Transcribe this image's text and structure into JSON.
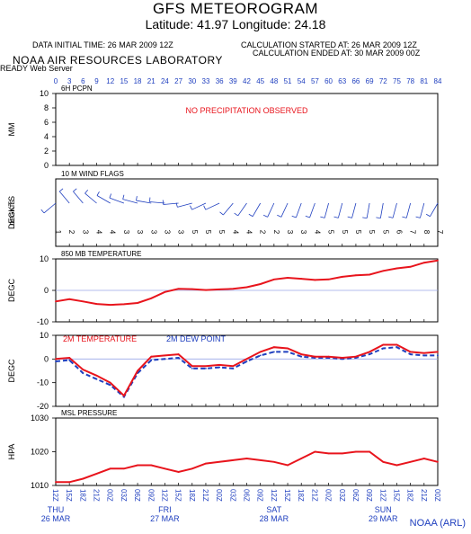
{
  "header": {
    "title": "GFS METEOROGRAM",
    "subtitle": "Latitude: 41.97 Longitude:  24.18",
    "data_initial_time": "DATA INITIAL TIME: 26 MAR 2009 12Z",
    "calc_started": "CALCULATION STARTED AT: 26 MAR 2009 12Z",
    "calc_ended": "CALCULATION ENDED AT: 30 MAR 2009 00Z",
    "organization": "NOAA AIR RESOURCES LABORATORY",
    "server": "READY Web Server",
    "footer": "NOAA (ARL)"
  },
  "colors": {
    "primary_series": "#e8141c",
    "secondary_series": "#1f3fbf",
    "axis_labels_blue": "#1f3fbf",
    "zero_line": "#9aa6e8"
  },
  "chart_data": [
    {
      "type": "bar",
      "panel": "6H PCPN",
      "title": "6H PCPN",
      "ylabel": "MM",
      "ylim": [
        0,
        10
      ],
      "yticks": [
        0,
        2,
        4,
        6,
        8,
        10
      ],
      "annotation": "NO PRECIPITATION OBSERVED",
      "forecast_hours": [
        "0",
        "3",
        "6",
        "9",
        "12",
        "15",
        "18",
        "21",
        "24",
        "27",
        "30",
        "33",
        "36",
        "39",
        "42",
        "45",
        "48",
        "51",
        "54",
        "57",
        "60",
        "63",
        "66",
        "69",
        "72",
        "75",
        "78",
        "81",
        "84"
      ],
      "values": []
    },
    {
      "type": "scatter",
      "panel": "10 M WIND FLAGS",
      "title": "10 M  WIND FLAGS",
      "ylabel": "DEGKTS",
      "speed_labels": [
        "1",
        "2",
        "3",
        "4",
        "4",
        "3",
        "3",
        "3",
        "3",
        "3",
        "5",
        "5",
        "5",
        "4",
        "4",
        "2",
        "2",
        "3",
        "3",
        "4",
        "5",
        "5",
        "5",
        "5",
        "5",
        "6",
        "7",
        "8",
        "7"
      ],
      "direction_deg": [
        230,
        320,
        320,
        310,
        300,
        290,
        285,
        280,
        275,
        265,
        255,
        245,
        245,
        220,
        215,
        210,
        205,
        205,
        200,
        200,
        195,
        195,
        195,
        190,
        190,
        195,
        195,
        195,
        210
      ]
    },
    {
      "type": "line",
      "panel": "850 MB TEMPERATURE",
      "title": "850 MB  TEMPERATURE",
      "ylabel": "DEGC",
      "ylim": [
        -10,
        10
      ],
      "yticks": [
        -10,
        0,
        10
      ],
      "series": [
        {
          "name": "850 MB TEMPERATURE",
          "values": [
            -3.5,
            -2.8,
            -3.5,
            -4.3,
            -4.6,
            -4.4,
            -4,
            -2.5,
            -0.5,
            0.5,
            0.4,
            0.1,
            0.3,
            0.5,
            1,
            2,
            3.5,
            4,
            3.7,
            3.3,
            3.5,
            4.3,
            4.8,
            5,
            6.2,
            7,
            7.5,
            8.8,
            9.5
          ]
        }
      ]
    },
    {
      "type": "line",
      "panel": "2M TEMPERATURE / DEW POINT",
      "ylabel": "DEGC",
      "ylim": [
        -20,
        10
      ],
      "yticks": [
        -20,
        -10,
        0,
        10
      ],
      "series": [
        {
          "name": "2M TEMPERATURE",
          "values": [
            0,
            0.5,
            -4.5,
            -7,
            -10,
            -15.5,
            -5,
            1,
            1.5,
            2,
            -3,
            -3,
            -2.5,
            -3,
            0,
            3,
            5,
            4.5,
            2,
            1,
            1,
            0.5,
            1,
            3,
            6,
            6,
            3,
            2.5,
            3
          ]
        },
        {
          "name": "2M   DEW POINT",
          "values": [
            -1,
            -0.5,
            -6,
            -8.5,
            -11,
            -16,
            -6,
            -0.5,
            0,
            0.5,
            -4,
            -4,
            -3.5,
            -4,
            -1,
            1.5,
            3,
            3,
            1,
            0.5,
            0.5,
            0,
            0.5,
            2,
            4.5,
            5,
            2,
            1.5,
            1.5
          ]
        }
      ]
    },
    {
      "type": "line",
      "panel": "MSL PRESSURE",
      "title": "MSL PRESSURE",
      "ylabel": "HPA",
      "ylim": [
        1010,
        1030
      ],
      "yticks": [
        1010,
        1020,
        1030
      ],
      "series": [
        {
          "name": "MSL PRESSURE",
          "values": [
            1011,
            1011,
            1012,
            1013.5,
            1015,
            1015,
            1016,
            1016,
            1015,
            1014,
            1015,
            1016.5,
            1017,
            1017.5,
            1018,
            1017.5,
            1017,
            1016,
            1018,
            1020,
            1019.5,
            1019.5,
            1020,
            1020,
            1017,
            1016,
            1017,
            1018,
            1017
          ]
        }
      ]
    }
  ],
  "x_axis": {
    "forecast_hours_label_top": [
      "0",
      "3",
      "6",
      "9",
      "12",
      "15",
      "18",
      "21",
      "24",
      "27",
      "30",
      "33",
      "36",
      "39",
      "42",
      "45",
      "48",
      "51",
      "54",
      "57",
      "60",
      "63",
      "66",
      "69",
      "72",
      "75",
      "78",
      "81",
      "84"
    ],
    "time_labels": [
      "12Z",
      "15Z",
      "18Z",
      "21Z",
      "00Z",
      "03Z",
      "06Z",
      "09Z",
      "12Z",
      "15Z",
      "18Z",
      "21Z",
      "00Z",
      "03Z",
      "06Z",
      "09Z",
      "12Z",
      "15Z",
      "18Z",
      "21Z",
      "00Z",
      "03Z",
      "06Z",
      "09Z",
      "12Z",
      "15Z",
      "18Z",
      "21Z",
      "00Z"
    ],
    "day_labels": [
      {
        "day": "THU",
        "date": "26 MAR",
        "at_index": 0
      },
      {
        "day": "FRI",
        "date": "27 MAR",
        "at_index": 8
      },
      {
        "day": "SAT",
        "date": "28 MAR",
        "at_index": 16
      },
      {
        "day": "SUN",
        "date": "29 MAR",
        "at_index": 24
      }
    ]
  }
}
